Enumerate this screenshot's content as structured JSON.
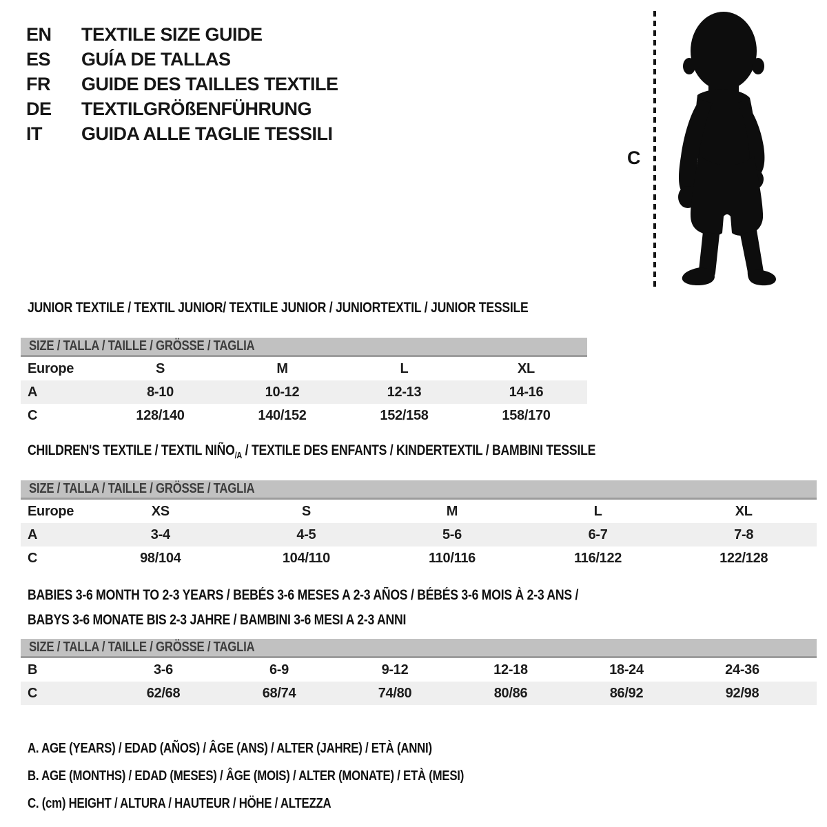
{
  "header": {
    "entries": [
      {
        "code": "EN",
        "text": "TEXTILE SIZE GUIDE"
      },
      {
        "code": "ES",
        "text": "GUÍA DE TALLAS"
      },
      {
        "code": "FR",
        "text": "GUIDE DES TAILLES TEXTILE"
      },
      {
        "code": "DE",
        "text": "TEXTILGRÖßENFÜHRUNG"
      },
      {
        "code": "IT",
        "text": "GUIDA ALLE TAGLIE TESSILI"
      }
    ]
  },
  "figure": {
    "measure_label": "C",
    "silhouette_icon": "toddler-silhouette-icon",
    "silhouette_color": "#0d0d0d"
  },
  "sections": [
    {
      "title_lines": [
        {
          "pre": "JUNIOR TEXTILE / TEXTIL JUNIOR/ TEXTILE JUNIOR / JUNIORTEXTIL / JUNIOR TESSILE",
          "sub": "",
          "post": ""
        }
      ],
      "size_header": "SIZE / TALLA / TAILLE / GRÖSSE / TAGLIA",
      "rows": [
        {
          "label": "Europe",
          "cells": [
            "S",
            "M",
            "L",
            "XL"
          ],
          "shaded": false
        },
        {
          "label": "A",
          "cells": [
            "8-10",
            "10-12",
            "12-13",
            "14-16"
          ],
          "shaded": true
        },
        {
          "label": "C",
          "cells": [
            "128/140",
            "140/152",
            "152/158",
            "158/170"
          ],
          "shaded": false
        }
      ]
    },
    {
      "title_lines": [
        {
          "pre": "CHILDREN'S TEXTILE / TEXTIL NIÑO",
          "sub": "/A",
          "post": " / TEXTILE DES ENFANTS / KINDERTEXTIL / BAMBINI TESSILE"
        }
      ],
      "size_header": "SIZE / TALLA / TAILLE / GRÖSSE / TAGLIA",
      "rows": [
        {
          "label": "Europe",
          "cells": [
            "XS",
            "S",
            "M",
            "L",
            "XL"
          ],
          "shaded": false
        },
        {
          "label": "A",
          "cells": [
            "3-4",
            "4-5",
            "5-6",
            "6-7",
            "7-8"
          ],
          "shaded": true
        },
        {
          "label": "C",
          "cells": [
            "98/104",
            "104/110",
            "110/116",
            "116/122",
            "122/128"
          ],
          "shaded": false
        }
      ]
    },
    {
      "title_lines": [
        {
          "pre": "BABIES 3-6 MONTH TO 2-3 YEARS / BEBÉS 3-6 MESES A 2-3 AÑOS / BÉBÉS 3-6 MOIS À 2-3 ANS /",
          "sub": "",
          "post": ""
        },
        {
          "pre": "BABYS 3-6 MONATE BIS 2-3 JAHRE / BAMBINI 3-6 MESI A 2-3 ANNI",
          "sub": "",
          "post": ""
        }
      ],
      "size_header": "SIZE / TALLA / TAILLE / GRÖSSE / TAGLIA",
      "rows": [
        {
          "label": "B",
          "cells": [
            "3-6",
            "6-9",
            "9-12",
            "12-18",
            "18-24",
            "24-36"
          ],
          "shaded": false
        },
        {
          "label": "C",
          "cells": [
            "62/68",
            "68/74",
            "74/80",
            "80/86",
            "86/92",
            "92/98"
          ],
          "shaded": true
        }
      ]
    }
  ],
  "legend": {
    "lines": [
      "A. AGE (YEARS) / EDAD (AÑOS) / ÂGE (ANS) / ALTER (JAHRE) / ETÀ (ANNI)",
      "B. AGE (MONTHS) / EDAD (MESES) / ÂGE (MOIS) / ALTER (MONATE) / ETÀ (MESI)",
      "C. (cm) HEIGHT / ALTURA / HAUTEUR / HÖHE / ALTEZZA"
    ]
  },
  "colors": {
    "size_bar_bg": "#c1c1c1",
    "size_bar_border": "#9c9c9c",
    "size_bar_text": "#3d3d3d",
    "shaded_row_bg": "#efefef",
    "text": "#1c1c1c"
  }
}
